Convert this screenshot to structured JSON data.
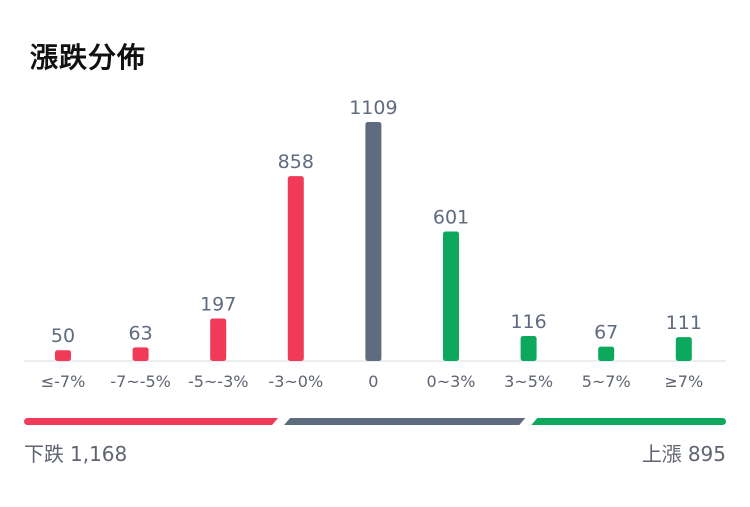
{
  "title": "漲跌分佈",
  "colors": {
    "down": "#f03a58",
    "flat": "#5f6b7f",
    "up": "#0ca85e",
    "value_label": "#5f6b7f",
    "tick_label": "#5f6470",
    "axis": "#e6e7ea"
  },
  "chart_data": {
    "type": "bar",
    "categories": [
      "≤-7%",
      "-7~-5%",
      "-5~-3%",
      "-3~0%",
      "0",
      "0~3%",
      "3~5%",
      "5~7%",
      "≥7%"
    ],
    "values": [
      50,
      63,
      197,
      858,
      1109,
      601,
      116,
      67,
      111
    ],
    "series_groups": [
      "down",
      "down",
      "down",
      "down",
      "flat",
      "up",
      "up",
      "up",
      "up"
    ],
    "ylim": [
      0,
      1109
    ],
    "grid": false,
    "legend": "none",
    "summary_bar": {
      "down_total": 1168,
      "flat_total": 1109,
      "up_total": 895
    }
  },
  "footer": {
    "down_label": "下跌",
    "down_value": "1,168",
    "up_label": "上漲",
    "up_value": "895"
  }
}
